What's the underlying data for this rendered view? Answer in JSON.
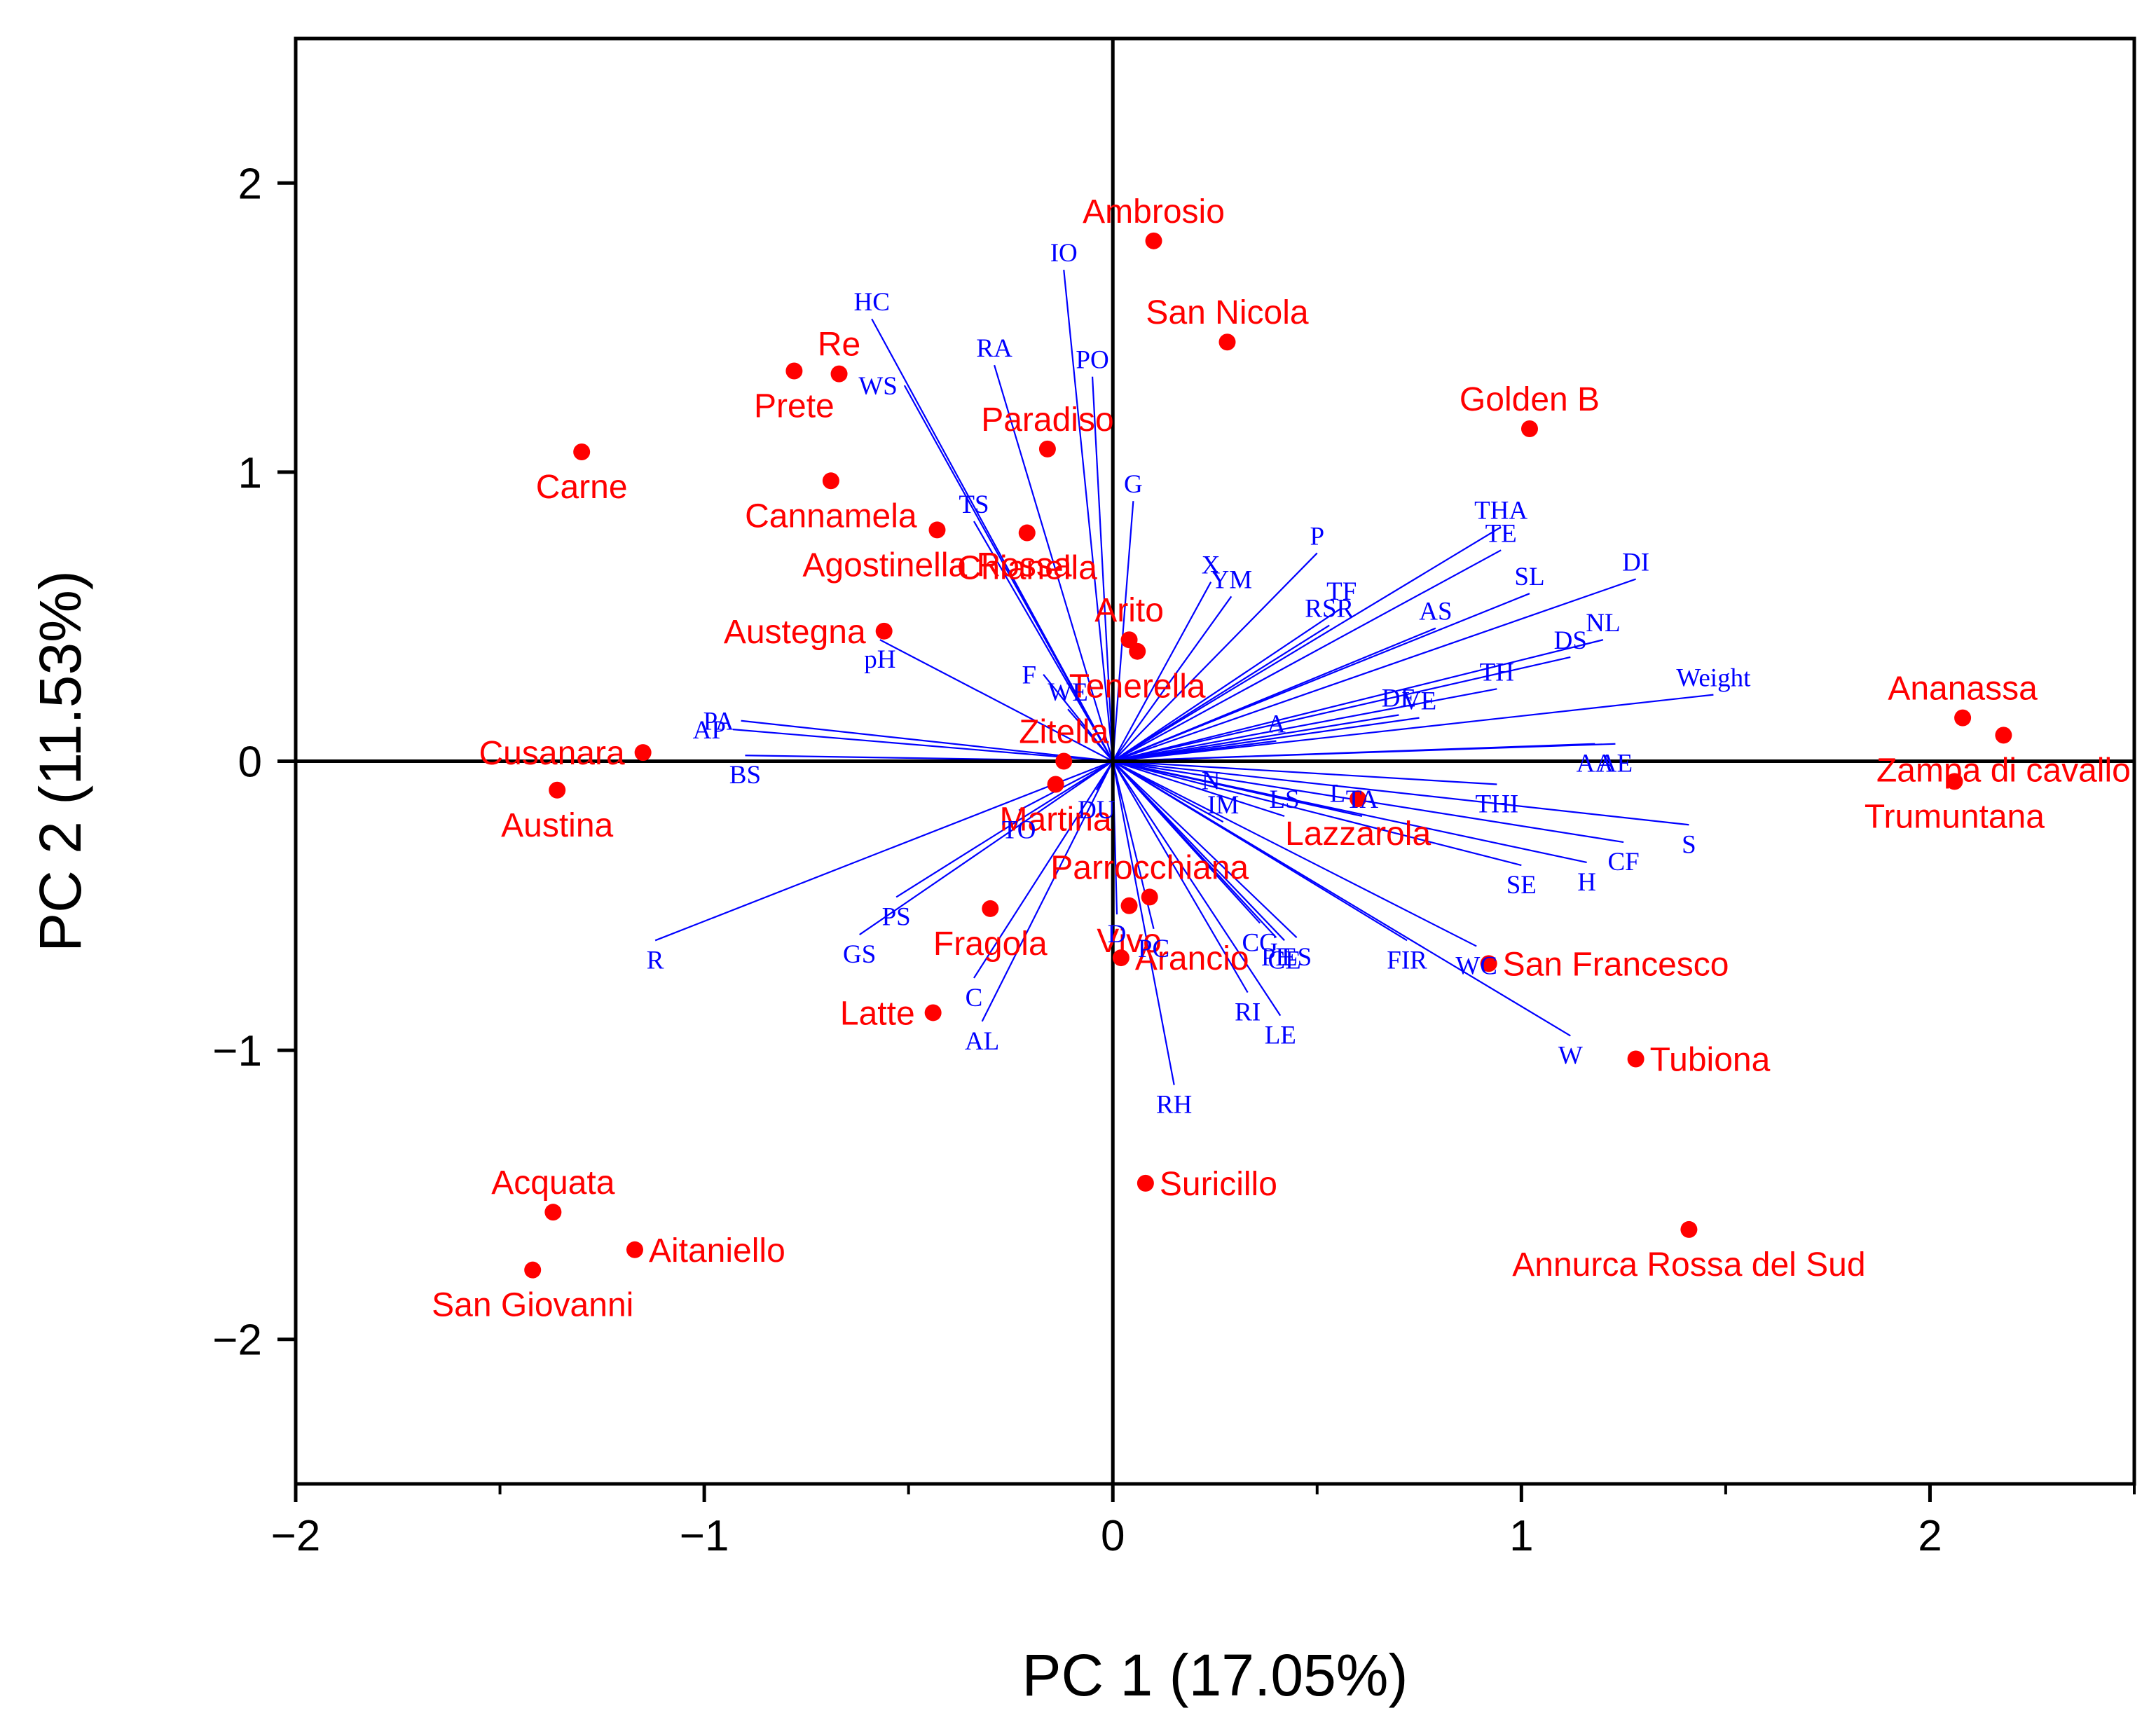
{
  "chart_data": {
    "type": "scatter",
    "subtype": "pca-biplot",
    "title": "",
    "xlabel": "PC 1 (17.05%)",
    "ylabel": "PC 2 (11.53%)",
    "xlim": [
      -2,
      2.5
    ],
    "ylim": [
      -2.5,
      2.5
    ],
    "x_ticks": [
      -2,
      -1,
      0,
      1,
      2
    ],
    "x_tick_labels": [
      "−2",
      "−1",
      "0",
      "1",
      "2"
    ],
    "y_ticks": [
      -2,
      -1,
      0,
      1,
      2
    ],
    "y_tick_labels": [
      "−2",
      "−1",
      "0",
      "1",
      "2"
    ],
    "grid": false,
    "zero_lines": true,
    "colors": {
      "cultivar": "#ff0000",
      "loading": "#0000ff",
      "axis": "#000000"
    },
    "scores": [
      {
        "name": "Ambrosio",
        "x": 0.1,
        "y": 1.8,
        "label_pos": "above"
      },
      {
        "name": "San Nicola",
        "x": 0.28,
        "y": 1.45,
        "label_pos": "above"
      },
      {
        "name": "Golden B",
        "x": 1.02,
        "y": 1.15,
        "label_pos": "above"
      },
      {
        "name": "Re",
        "x": -0.67,
        "y": 1.34,
        "label_pos": "above"
      },
      {
        "name": "Prete",
        "x": -0.78,
        "y": 1.35,
        "label_pos": "below"
      },
      {
        "name": "Carne",
        "x": -1.3,
        "y": 1.07,
        "label_pos": "below"
      },
      {
        "name": "Paradiso",
        "x": -0.16,
        "y": 1.08,
        "label_pos": "above"
      },
      {
        "name": "Cannamela",
        "x": -0.69,
        "y": 0.97,
        "label_pos": "below"
      },
      {
        "name": "Agostinella Rossa",
        "x": -0.43,
        "y": 0.8,
        "label_pos": "below"
      },
      {
        "name": "Chianella",
        "x": -0.21,
        "y": 0.79,
        "label_pos": "below"
      },
      {
        "name": "Austegna",
        "x": -0.56,
        "y": 0.45,
        "label_pos": "left"
      },
      {
        "name": "Arito",
        "x": 0.04,
        "y": 0.42,
        "label_pos": "above"
      },
      {
        "name": "Tenerella",
        "x": 0.06,
        "y": 0.38,
        "label_pos": "below"
      },
      {
        "name": "Ananassa",
        "x": 2.08,
        "y": 0.15,
        "label_pos": "above"
      },
      {
        "name": "Zampa di cavallo",
        "x": 2.18,
        "y": 0.09,
        "label_pos": "below"
      },
      {
        "name": "Trumuntana",
        "x": 2.06,
        "y": -0.07,
        "label_pos": "below"
      },
      {
        "name": "Cusanara",
        "x": -1.15,
        "y": 0.03,
        "label_pos": "left"
      },
      {
        "name": "Austina",
        "x": -1.36,
        "y": -0.1,
        "label_pos": "below"
      },
      {
        "name": "Zitella",
        "x": -0.12,
        "y": 0.0,
        "label_pos": "above"
      },
      {
        "name": "Martina",
        "x": -0.14,
        "y": -0.08,
        "label_pos": "below"
      },
      {
        "name": "Lazzarola",
        "x": 0.6,
        "y": -0.13,
        "label_pos": "below"
      },
      {
        "name": "Parrocchiana",
        "x": 0.09,
        "y": -0.47,
        "label_pos": "above"
      },
      {
        "name": "Vivo",
        "x": 0.04,
        "y": -0.5,
        "label_pos": "below"
      },
      {
        "name": "Fragola",
        "x": -0.3,
        "y": -0.51,
        "label_pos": "below"
      },
      {
        "name": "Arancio",
        "x": 0.02,
        "y": -0.68,
        "label_pos": "right"
      },
      {
        "name": "San Francesco",
        "x": 0.92,
        "y": -0.7,
        "label_pos": "right"
      },
      {
        "name": "Latte",
        "x": -0.44,
        "y": -0.87,
        "label_pos": "left"
      },
      {
        "name": "Tubiona",
        "x": 1.28,
        "y": -1.03,
        "label_pos": "right"
      },
      {
        "name": "Suricillo",
        "x": 0.08,
        "y": -1.46,
        "label_pos": "right"
      },
      {
        "name": "Acquata",
        "x": -1.37,
        "y": -1.56,
        "label_pos": "above"
      },
      {
        "name": "Aitaniello",
        "x": -1.17,
        "y": -1.69,
        "label_pos": "right"
      },
      {
        "name": "San Giovanni",
        "x": -1.42,
        "y": -1.76,
        "label_pos": "below"
      },
      {
        "name": "Annurca Rossa del Sud",
        "x": 1.41,
        "y": -1.62,
        "label_pos": "below"
      }
    ],
    "loadings": [
      {
        "name": "IO",
        "x": -0.12,
        "y": 1.7,
        "label_pos": "above"
      },
      {
        "name": "HC",
        "x": -0.59,
        "y": 1.53,
        "label_pos": "above"
      },
      {
        "name": "WS",
        "x": -0.51,
        "y": 1.3,
        "label_pos": "left"
      },
      {
        "name": "RA",
        "x": -0.29,
        "y": 1.37,
        "label_pos": "above"
      },
      {
        "name": "PO",
        "x": -0.05,
        "y": 1.33,
        "label_pos": "above"
      },
      {
        "name": "TS",
        "x": -0.34,
        "y": 0.83,
        "label_pos": "above"
      },
      {
        "name": "G",
        "x": 0.05,
        "y": 0.9,
        "label_pos": "above"
      },
      {
        "name": "pH",
        "x": -0.57,
        "y": 0.42,
        "label_pos": "below"
      },
      {
        "name": "F",
        "x": -0.17,
        "y": 0.3,
        "label_pos": "left"
      },
      {
        "name": "WE",
        "x": -0.11,
        "y": 0.18,
        "label_pos": "above"
      },
      {
        "name": "PA",
        "x": -0.91,
        "y": 0.14,
        "label_pos": "left"
      },
      {
        "name": "AP",
        "x": -0.93,
        "y": 0.11,
        "label_pos": "left"
      },
      {
        "name": "BS",
        "x": -0.9,
        "y": 0.02,
        "label_pos": "below"
      },
      {
        "name": "X",
        "x": 0.24,
        "y": 0.62,
        "label_pos": "above"
      },
      {
        "name": "YM",
        "x": 0.29,
        "y": 0.57,
        "label_pos": "above"
      },
      {
        "name": "P",
        "x": 0.5,
        "y": 0.72,
        "label_pos": "above"
      },
      {
        "name": "TF",
        "x": 0.56,
        "y": 0.53,
        "label_pos": "above"
      },
      {
        "name": "RSR",
        "x": 0.53,
        "y": 0.47,
        "label_pos": "above"
      },
      {
        "name": "THA",
        "x": 0.95,
        "y": 0.81,
        "label_pos": "above"
      },
      {
        "name": "TE",
        "x": 0.95,
        "y": 0.73,
        "label_pos": "above"
      },
      {
        "name": "SL",
        "x": 1.02,
        "y": 0.58,
        "label_pos": "above"
      },
      {
        "name": "DI",
        "x": 1.28,
        "y": 0.63,
        "label_pos": "above"
      },
      {
        "name": "AS",
        "x": 0.79,
        "y": 0.46,
        "label_pos": "above"
      },
      {
        "name": "NL",
        "x": 1.2,
        "y": 0.42,
        "label_pos": "above"
      },
      {
        "name": "DS",
        "x": 1.12,
        "y": 0.36,
        "label_pos": "above"
      },
      {
        "name": "Weight",
        "x": 1.47,
        "y": 0.23,
        "label_pos": "above"
      },
      {
        "name": "TH",
        "x": 0.94,
        "y": 0.25,
        "label_pos": "above"
      },
      {
        "name": "DE",
        "x": 0.7,
        "y": 0.16,
        "label_pos": "above"
      },
      {
        "name": "VE",
        "x": 0.75,
        "y": 0.15,
        "label_pos": "above"
      },
      {
        "name": "A",
        "x": 0.4,
        "y": 0.07,
        "label_pos": "above"
      },
      {
        "name": "AA",
        "x": 1.18,
        "y": 0.06,
        "label_pos": "below"
      },
      {
        "name": "AE",
        "x": 1.23,
        "y": 0.06,
        "label_pos": "below"
      },
      {
        "name": "N",
        "x": 0.24,
        "y": 0.0,
        "label_pos": "below"
      },
      {
        "name": "THI",
        "x": 0.94,
        "y": -0.08,
        "label_pos": "below"
      },
      {
        "name": "S",
        "x": 1.41,
        "y": -0.22,
        "label_pos": "below"
      },
      {
        "name": "CF",
        "x": 1.25,
        "y": -0.28,
        "label_pos": "below"
      },
      {
        "name": "H",
        "x": 1.16,
        "y": -0.35,
        "label_pos": "below"
      },
      {
        "name": "SE",
        "x": 1.0,
        "y": -0.36,
        "label_pos": "below"
      },
      {
        "name": "L",
        "x": 0.55,
        "y": -0.17,
        "label_pos": "above"
      },
      {
        "name": "TA",
        "x": 0.61,
        "y": -0.19,
        "label_pos": "above"
      },
      {
        "name": "LS",
        "x": 0.42,
        "y": -0.19,
        "label_pos": "above"
      },
      {
        "name": "IM",
        "x": 0.27,
        "y": -0.21,
        "label_pos": "above"
      },
      {
        "name": "FIR",
        "x": 0.72,
        "y": -0.62,
        "label_pos": "below"
      },
      {
        "name": "WC",
        "x": 0.89,
        "y": -0.64,
        "label_pos": "below"
      },
      {
        "name": "W",
        "x": 1.12,
        "y": -0.95,
        "label_pos": "below"
      },
      {
        "name": "CG",
        "x": 0.36,
        "y": -0.56,
        "label_pos": "below"
      },
      {
        "name": "PE",
        "x": 0.4,
        "y": -0.61,
        "label_pos": "below"
      },
      {
        "name": "CE",
        "x": 0.42,
        "y": -0.62,
        "label_pos": "below"
      },
      {
        "name": "ES",
        "x": 0.45,
        "y": -0.61,
        "label_pos": "below"
      },
      {
        "name": "RI",
        "x": 0.33,
        "y": -0.8,
        "label_pos": "below"
      },
      {
        "name": "LE",
        "x": 0.41,
        "y": -0.88,
        "label_pos": "below"
      },
      {
        "name": "D",
        "x": 0.01,
        "y": -0.53,
        "label_pos": "below"
      },
      {
        "name": "PC",
        "x": 0.1,
        "y": -0.58,
        "label_pos": "below"
      },
      {
        "name": "RH",
        "x": 0.15,
        "y": -1.12,
        "label_pos": "below"
      },
      {
        "name": "DU",
        "x": -0.04,
        "y": -0.1,
        "label_pos": "below"
      },
      {
        "name": "TO",
        "x": -0.23,
        "y": -0.17,
        "label_pos": "below"
      },
      {
        "name": "R",
        "x": -1.12,
        "y": -0.62,
        "label_pos": "below"
      },
      {
        "name": "PS",
        "x": -0.53,
        "y": -0.47,
        "label_pos": "below"
      },
      {
        "name": "GS",
        "x": -0.62,
        "y": -0.6,
        "label_pos": "below"
      },
      {
        "name": "C",
        "x": -0.34,
        "y": -0.75,
        "label_pos": "below"
      },
      {
        "name": "AL",
        "x": -0.32,
        "y": -0.9,
        "label_pos": "below"
      }
    ]
  }
}
